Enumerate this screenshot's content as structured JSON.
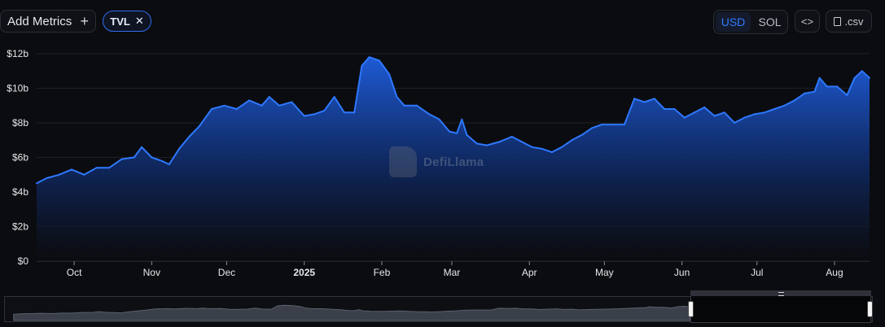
{
  "toolbar": {
    "add_metrics_label": "Add Metrics",
    "add_icon": "plus-icon",
    "active_metric": "TVL",
    "remove_icon": "close-icon",
    "currency_options": [
      "USD",
      "SOL"
    ],
    "currency_selected": "USD",
    "embed_label": "<>",
    "csv_label": ".csv",
    "csv_icon": "file-icon"
  },
  "watermark": "DefiLlama",
  "colors": {
    "accent": "#2f7bff",
    "line": "#2e78ff",
    "background": "#0b0c0f"
  },
  "chart_data": {
    "type": "area",
    "title": "",
    "xlabel": "",
    "ylabel": "",
    "ylim": [
      0,
      12
    ],
    "y_unit": "USD billions",
    "y_tick_labels": [
      "$0",
      "$2b",
      "$4b",
      "$6b",
      "$8b",
      "$10b",
      "$12b"
    ],
    "y_ticks": [
      0,
      2,
      4,
      6,
      8,
      10,
      12
    ],
    "x_tick_labels": [
      "Oct",
      "Nov",
      "Dec",
      "2025",
      "Feb",
      "Mar",
      "Apr",
      "May",
      "Jun",
      "Jul",
      "Aug"
    ],
    "x_ticks": [
      "2024-10-01",
      "2024-11-01",
      "2024-12-01",
      "2025-01-01",
      "2025-02-01",
      "2025-03-01",
      "2025-04-01",
      "2025-05-01",
      "2025-06-01",
      "2025-07-01",
      "2025-08-01"
    ],
    "xlim": [
      "2024-09-16",
      "2025-08-15"
    ],
    "grid": true,
    "legend": "none",
    "series": [
      {
        "values": [
          [
            "2024-09-16",
            4.5
          ],
          [
            "2024-09-20",
            4.8
          ],
          [
            "2024-09-25",
            5.0
          ],
          [
            "2024-09-30",
            5.3
          ],
          [
            "2024-10-05",
            5.0
          ],
          [
            "2024-10-10",
            5.4
          ],
          [
            "2024-10-15",
            5.4
          ],
          [
            "2024-10-20",
            5.9
          ],
          [
            "2024-10-25",
            6.0
          ],
          [
            "2024-10-28",
            6.6
          ],
          [
            "2024-11-01",
            6.0
          ],
          [
            "2024-11-05",
            5.8
          ],
          [
            "2024-11-08",
            5.6
          ],
          [
            "2024-11-12",
            6.5
          ],
          [
            "2024-11-16",
            7.2
          ],
          [
            "2024-11-20",
            7.8
          ],
          [
            "2024-11-25",
            8.8
          ],
          [
            "2024-11-30",
            9.0
          ],
          [
            "2024-12-05",
            8.8
          ],
          [
            "2024-12-10",
            9.3
          ],
          [
            "2024-12-15",
            9.0
          ],
          [
            "2024-12-18",
            9.5
          ],
          [
            "2024-12-22",
            9.0
          ],
          [
            "2024-12-27",
            9.2
          ],
          [
            "2025-01-01",
            8.4
          ],
          [
            "2025-01-05",
            8.5
          ],
          [
            "2025-01-09",
            8.7
          ],
          [
            "2025-01-13",
            9.5
          ],
          [
            "2025-01-17",
            8.6
          ],
          [
            "2025-01-21",
            8.6
          ],
          [
            "2025-01-24",
            11.3
          ],
          [
            "2025-01-27",
            11.8
          ],
          [
            "2025-01-31",
            11.6
          ],
          [
            "2025-02-04",
            10.8
          ],
          [
            "2025-02-07",
            9.5
          ],
          [
            "2025-02-10",
            9.0
          ],
          [
            "2025-02-15",
            9.0
          ],
          [
            "2025-02-20",
            8.5
          ],
          [
            "2025-02-24",
            8.2
          ],
          [
            "2025-02-28",
            7.5
          ],
          [
            "2025-03-03",
            7.4
          ],
          [
            "2025-03-05",
            8.2
          ],
          [
            "2025-03-07",
            7.3
          ],
          [
            "2025-03-11",
            6.8
          ],
          [
            "2025-03-15",
            6.7
          ],
          [
            "2025-03-20",
            6.9
          ],
          [
            "2025-03-25",
            7.2
          ],
          [
            "2025-03-29",
            6.9
          ],
          [
            "2025-04-02",
            6.6
          ],
          [
            "2025-04-06",
            6.5
          ],
          [
            "2025-04-10",
            6.3
          ],
          [
            "2025-04-14",
            6.6
          ],
          [
            "2025-04-18",
            7.0
          ],
          [
            "2025-04-22",
            7.3
          ],
          [
            "2025-04-26",
            7.7
          ],
          [
            "2025-04-30",
            7.9
          ],
          [
            "2025-05-05",
            7.9
          ],
          [
            "2025-05-09",
            7.9
          ],
          [
            "2025-05-13",
            9.4
          ],
          [
            "2025-05-17",
            9.2
          ],
          [
            "2025-05-21",
            9.4
          ],
          [
            "2025-05-25",
            8.8
          ],
          [
            "2025-05-29",
            8.8
          ],
          [
            "2025-06-02",
            8.3
          ],
          [
            "2025-06-06",
            8.6
          ],
          [
            "2025-06-10",
            8.9
          ],
          [
            "2025-06-14",
            8.4
          ],
          [
            "2025-06-18",
            8.6
          ],
          [
            "2025-06-22",
            8.0
          ],
          [
            "2025-06-26",
            8.3
          ],
          [
            "2025-06-30",
            8.5
          ],
          [
            "2025-07-04",
            8.6
          ],
          [
            "2025-07-08",
            8.8
          ],
          [
            "2025-07-12",
            9.0
          ],
          [
            "2025-07-16",
            9.3
          ],
          [
            "2025-07-20",
            9.7
          ],
          [
            "2025-07-24",
            9.8
          ],
          [
            "2025-07-26",
            10.6
          ],
          [
            "2025-07-29",
            10.1
          ],
          [
            "2025-08-02",
            10.1
          ],
          [
            "2025-08-06",
            9.6
          ],
          [
            "2025-08-09",
            10.6
          ],
          [
            "2025-08-12",
            11.0
          ],
          [
            "2025-08-15",
            10.6
          ]
        ]
      }
    ]
  }
}
